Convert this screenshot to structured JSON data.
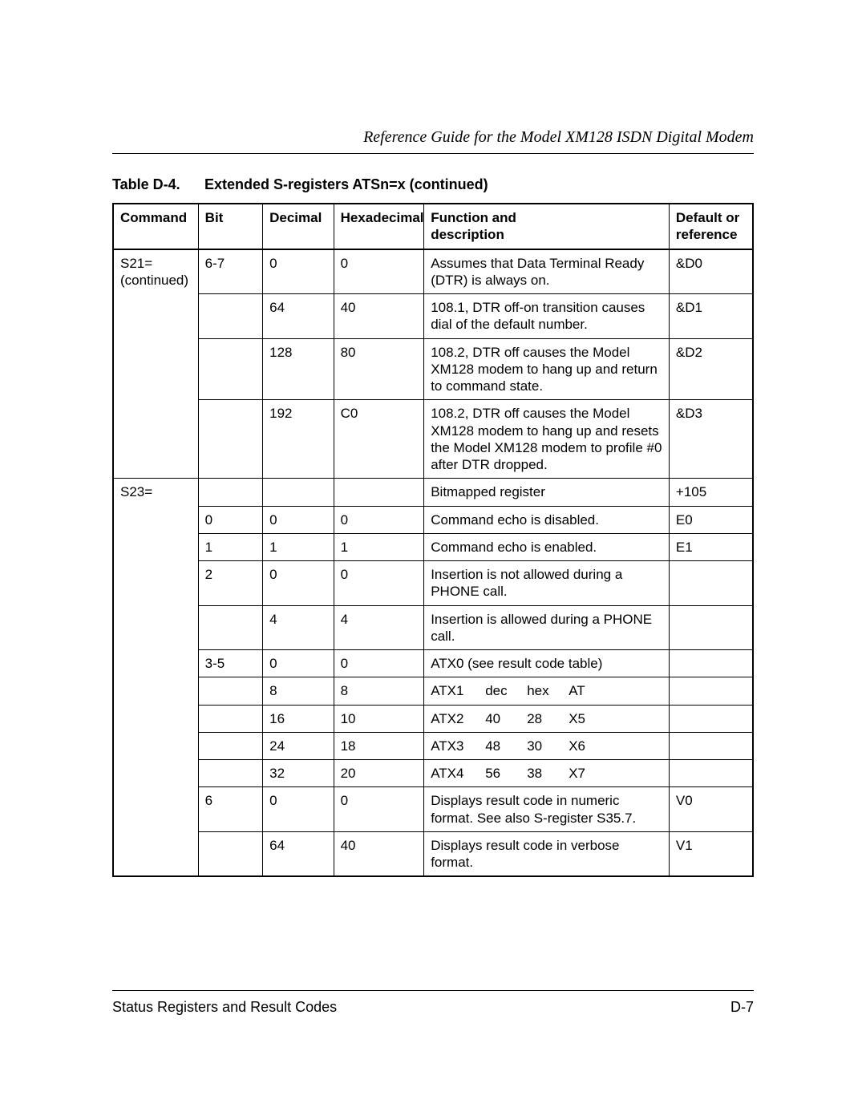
{
  "running_head": "Reference Guide for the Model XM128 ISDN Digital Modem",
  "table": {
    "label": "Table D-4.",
    "title": "Extended S-registers ATSn=x (continued)",
    "columns": [
      "Command",
      "Bit",
      "Decimal",
      "Hexadecimal",
      "Function and description",
      "Default or reference"
    ],
    "col_widths_pct": [
      13.2,
      10.0,
      11.0,
      14.0,
      38.0,
      13.0
    ],
    "header_font_weight": "bold",
    "body_font_size_pt": 13,
    "border_color": "#000000",
    "rows": [
      {
        "command": "S21= (continued)",
        "bit": "6-7",
        "decimal": "0",
        "hex": "0",
        "func": "Assumes that Data Terminal Ready (DTR) is always on.",
        "ref": "&D0",
        "merge_command_down": true
      },
      {
        "command": "",
        "bit": "",
        "decimal": "64",
        "hex": "40",
        "func": "108.1, DTR off-on transition causes dial of the default number.",
        "ref": "&D1"
      },
      {
        "command": "",
        "bit": "",
        "decimal": "128",
        "hex": "80",
        "func": "108.2, DTR off causes the Model XM128 modem to hang up and return to command state.",
        "ref": "&D2"
      },
      {
        "command": "",
        "bit": "",
        "decimal": "192",
        "hex": "C0",
        "func": "108.2, DTR off causes the Model XM128 modem to hang up and resets the Model XM128 modem to profile #0 after DTR dropped.",
        "ref": "&D3"
      },
      {
        "command": "S23=",
        "bit": "",
        "decimal": "",
        "hex": "",
        "func": "Bitmapped register",
        "ref": "+105",
        "merge_command_down": true
      },
      {
        "command": "",
        "bit": "0",
        "decimal": "0",
        "hex": "0",
        "func": "Command echo is disabled.",
        "ref": "E0"
      },
      {
        "command": "",
        "bit": "1",
        "decimal": "1",
        "hex": "1",
        "func": "Command echo is enabled.",
        "ref": "E1"
      },
      {
        "command": "",
        "bit": "2",
        "decimal": "0",
        "hex": "0",
        "func": "Insertion is not allowed during a PHONE call.",
        "ref": ""
      },
      {
        "command": "",
        "bit": "",
        "decimal": "4",
        "hex": "4",
        "func": "Insertion is allowed during a PHONE call.",
        "ref": ""
      },
      {
        "command": "",
        "bit": "3-5",
        "decimal": "0",
        "hex": "0",
        "func": "ATX0 (see result code table)",
        "ref": ""
      },
      {
        "command": "",
        "bit": "",
        "decimal": "8",
        "hex": "8",
        "func_parts": [
          "ATX1",
          "dec",
          "hex",
          "AT"
        ],
        "ref": ""
      },
      {
        "command": "",
        "bit": "",
        "decimal": "16",
        "hex": "10",
        "func_parts": [
          "ATX2",
          "40",
          "28",
          "X5"
        ],
        "ref": ""
      },
      {
        "command": "",
        "bit": "",
        "decimal": "24",
        "hex": "18",
        "func_parts": [
          "ATX3",
          "48",
          "30",
          "X6"
        ],
        "ref": ""
      },
      {
        "command": "",
        "bit": "",
        "decimal": "32",
        "hex": "20",
        "func_parts": [
          "ATX4",
          "56",
          "38",
          "X7"
        ],
        "ref": ""
      },
      {
        "command": "",
        "bit": "6",
        "decimal": "0",
        "hex": "0",
        "func": "Displays result code in numeric format. See also S-register S35.7.",
        "ref": "V0"
      },
      {
        "command": "",
        "bit": "",
        "decimal": "64",
        "hex": "40",
        "func": "Displays result code in verbose format.",
        "ref": "V1"
      }
    ]
  },
  "footer": {
    "left": "Status Registers and Result Codes",
    "right": "D-7"
  },
  "colors": {
    "page_bg": "#ffffff",
    "text": "#000000",
    "rule": "#000000"
  }
}
